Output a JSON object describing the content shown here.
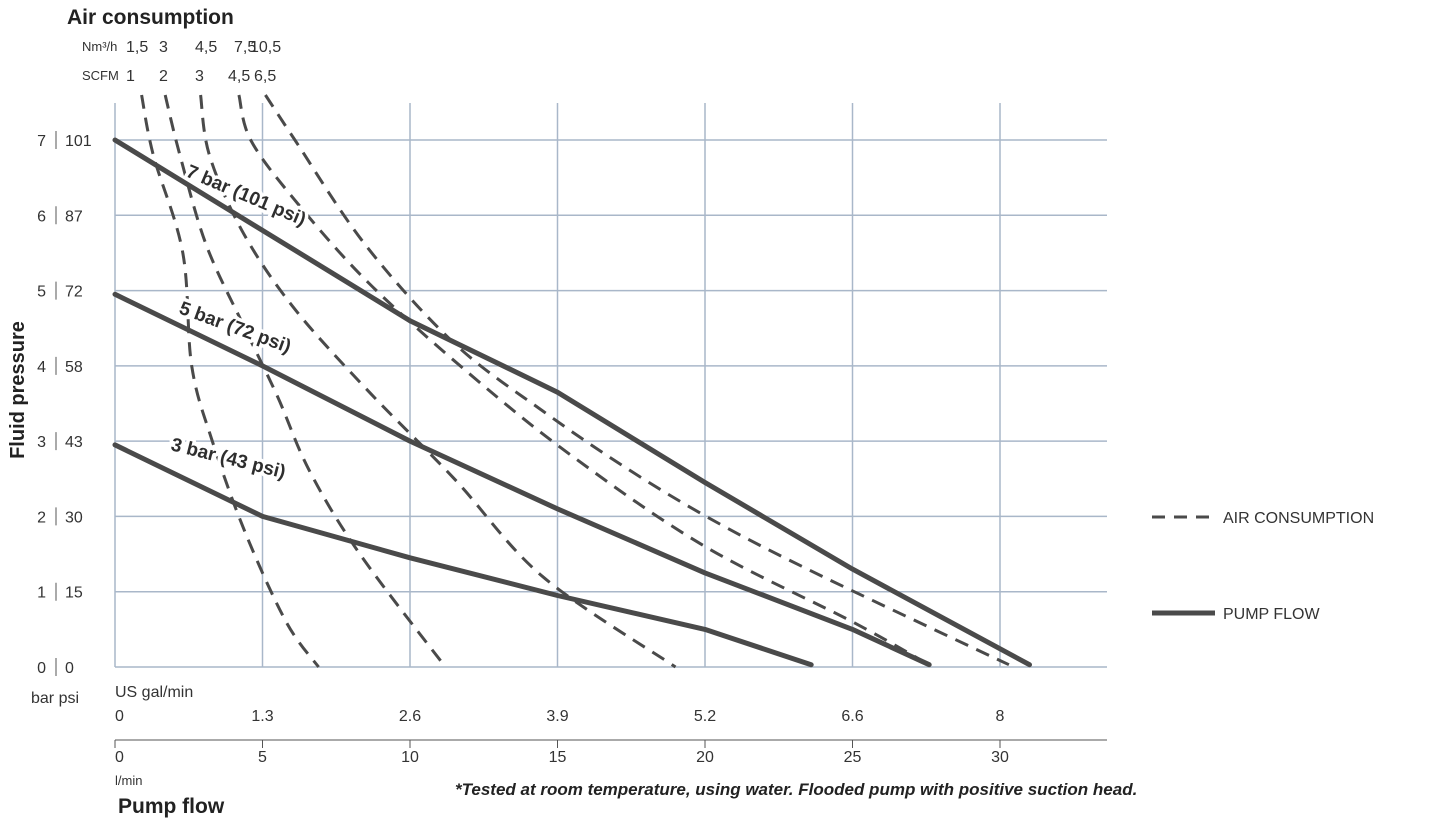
{
  "chart_data": {
    "type": "line",
    "title": "Air consumption",
    "ylabel": "Fluid pressure",
    "xlabel": "Pump flow",
    "footnote": "*Tested at room temperature, using water. Flooded pump with positive suction head.",
    "y_axis": {
      "range_bar": [
        0,
        7.5
      ],
      "bar_ticks": [
        "0",
        "1",
        "2",
        "3",
        "4",
        "5",
        "6",
        "7"
      ],
      "psi_ticks": [
        "0",
        "15",
        "30",
        "43",
        "58",
        "72",
        "87",
        "101"
      ],
      "unit_label": "bar psi"
    },
    "x_axis": {
      "range_lpm": [
        0,
        33.5
      ],
      "lpm_ticks": [
        "0",
        "5",
        "10",
        "15",
        "20",
        "25",
        "30"
      ],
      "lpm_unit": "l/min",
      "gpm_ticks": [
        "0",
        "1.3",
        "2.6",
        "3.9",
        "5.2",
        "6.6",
        "8"
      ],
      "gpm_unit": "US gal/min"
    },
    "air_scale": {
      "nm3h_label": "Nm³/h",
      "scfm_label": "SCFM",
      "nm3h": [
        "1,5",
        "3",
        "4,5",
        "7,5",
        "10,5"
      ],
      "scfm": [
        "1",
        "2",
        "3",
        "4,5",
        "6,5"
      ]
    },
    "pump_flow_series": [
      {
        "name": "7 bar (101 psi)",
        "points": [
          [
            0,
            7.0
          ],
          [
            10,
            4.6
          ],
          [
            15,
            3.65
          ],
          [
            20,
            2.45
          ],
          [
            25,
            1.3
          ],
          [
            31,
            0.03
          ]
        ]
      },
      {
        "name": "5 bar (72 psi)",
        "points": [
          [
            0,
            4.95
          ],
          [
            5,
            4.0
          ],
          [
            10,
            3.0
          ],
          [
            15,
            2.1
          ],
          [
            20,
            1.25
          ],
          [
            25,
            0.5
          ],
          [
            27.6,
            0.03
          ]
        ]
      },
      {
        "name": "3 bar (43 psi)",
        "points": [
          [
            0,
            2.95
          ],
          [
            5,
            2.0
          ],
          [
            10,
            1.45
          ],
          [
            15,
            0.95
          ],
          [
            20,
            0.5
          ],
          [
            23.6,
            0.03
          ]
        ]
      }
    ],
    "air_consumption_series": [
      {
        "name": "1,5",
        "points": [
          [
            0.9,
            7.8
          ],
          [
            1.3,
            6.8
          ],
          [
            2.3,
            5.5
          ],
          [
            2.6,
            4.0
          ],
          [
            3.3,
            3.0
          ],
          [
            4.4,
            1.8
          ],
          [
            5.8,
            0.6
          ],
          [
            6.9,
            0.0
          ]
        ]
      },
      {
        "name": "3",
        "points": [
          [
            1.7,
            7.8
          ],
          [
            2.2,
            6.8
          ],
          [
            3.1,
            5.6
          ],
          [
            4.4,
            4.5
          ],
          [
            5.5,
            3.6
          ],
          [
            6.6,
            2.6
          ],
          [
            8.3,
            1.5
          ],
          [
            11.2,
            0.0
          ]
        ]
      },
      {
        "name": "4,5",
        "points": [
          [
            2.9,
            7.8
          ],
          [
            3.2,
            6.8
          ],
          [
            4.3,
            5.8
          ],
          [
            6.0,
            4.8
          ],
          [
            8.5,
            3.7
          ],
          [
            11.5,
            2.5
          ],
          [
            14.5,
            1.2
          ],
          [
            19.0,
            0.0
          ]
        ]
      },
      {
        "name": "7,5",
        "points": [
          [
            4.2,
            7.8
          ],
          [
            4.6,
            7.0
          ],
          [
            6.1,
            6.2
          ],
          [
            8.6,
            5.1
          ],
          [
            12.0,
            3.9
          ],
          [
            15.5,
            2.8
          ],
          [
            20.0,
            1.6
          ],
          [
            25.0,
            0.6
          ],
          [
            27.5,
            0.05
          ]
        ]
      },
      {
        "name": "10,5",
        "points": [
          [
            5.1,
            7.8
          ],
          [
            6.1,
            7.0
          ],
          [
            8.5,
            5.6
          ],
          [
            11.5,
            4.3
          ],
          [
            14.5,
            3.4
          ],
          [
            17.5,
            2.6
          ],
          [
            20.5,
            1.9
          ],
          [
            24.0,
            1.2
          ],
          [
            30.3,
            0.03
          ]
        ]
      }
    ],
    "legend": [
      {
        "label": "AIR CONSUMPTION",
        "style": "dashed"
      },
      {
        "label": "PUMP FLOW",
        "style": "solid"
      }
    ],
    "legend_position": "right",
    "grid": true,
    "colors": {
      "line": "#4a4a4a",
      "grid": "#a9b7c9",
      "text": "#333333"
    }
  }
}
